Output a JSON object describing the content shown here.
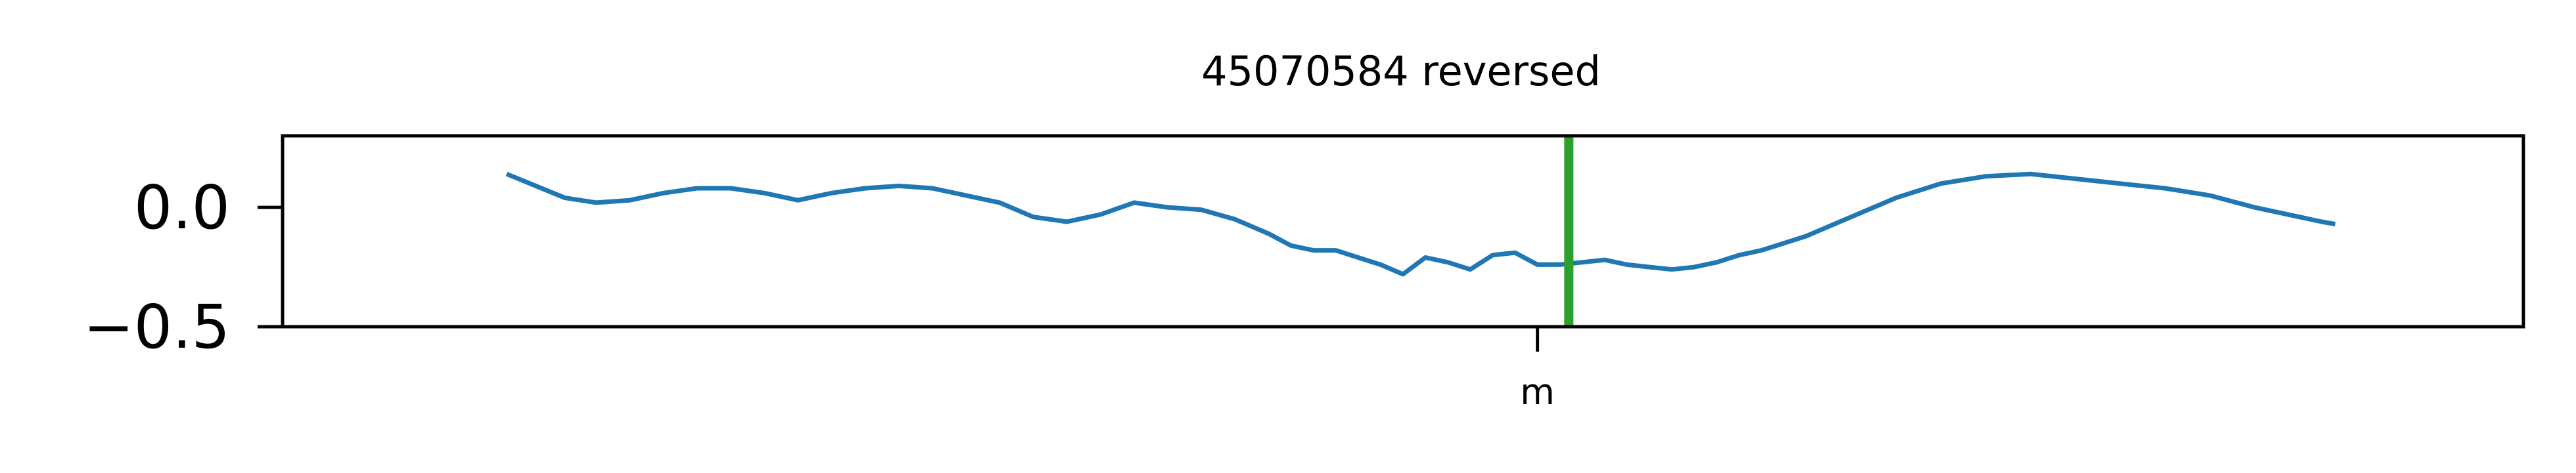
{
  "chart_data": {
    "type": "line",
    "title": "45070584 reversed",
    "xlabel": "",
    "ylabel": "",
    "ylim": [
      -0.5,
      0.3
    ],
    "yticks": [
      {
        "value": 0.0,
        "label": "0.0"
      },
      {
        "value": -0.5,
        "label": "−0.5"
      }
    ],
    "xlim": [
      0,
      1
    ],
    "xticks": [
      {
        "value": 0.56,
        "label": "m"
      }
    ],
    "grid": false,
    "series": [
      {
        "color": "#1f77b4",
        "x": [
          0.1,
          0.113,
          0.126,
          0.14,
          0.155,
          0.17,
          0.185,
          0.2,
          0.215,
          0.23,
          0.245,
          0.26,
          0.275,
          0.29,
          0.305,
          0.32,
          0.335,
          0.35,
          0.365,
          0.38,
          0.395,
          0.41,
          0.425,
          0.44,
          0.45,
          0.46,
          0.47,
          0.48,
          0.49,
          0.5,
          0.51,
          0.52,
          0.53,
          0.54,
          0.55,
          0.56,
          0.57,
          0.58,
          0.59,
          0.6,
          0.61,
          0.62,
          0.63,
          0.64,
          0.65,
          0.66,
          0.67,
          0.68,
          0.69,
          0.7,
          0.71,
          0.72,
          0.73,
          0.74,
          0.76,
          0.78,
          0.8,
          0.82,
          0.84,
          0.86,
          0.88,
          0.9,
          0.91,
          0.916
        ],
        "values": [
          0.14,
          0.09,
          0.04,
          0.02,
          0.03,
          0.06,
          0.08,
          0.08,
          0.06,
          0.03,
          0.06,
          0.08,
          0.09,
          0.08,
          0.05,
          0.02,
          -0.04,
          -0.06,
          -0.03,
          0.02,
          0.0,
          -0.01,
          -0.05,
          -0.11,
          -0.16,
          -0.18,
          -0.18,
          -0.21,
          -0.24,
          -0.28,
          -0.21,
          -0.23,
          -0.26,
          -0.2,
          -0.19,
          -0.24,
          -0.24,
          -0.23,
          -0.22,
          -0.24,
          -0.25,
          -0.26,
          -0.25,
          -0.23,
          -0.2,
          -0.18,
          -0.15,
          -0.12,
          -0.08,
          -0.04,
          0.0,
          0.04,
          0.07,
          0.1,
          0.13,
          0.14,
          0.12,
          0.1,
          0.08,
          0.05,
          0.0,
          -0.04,
          -0.06,
          -0.07
        ]
      }
    ],
    "vlines": [
      {
        "x": 0.574,
        "color": "#2ca02c"
      }
    ]
  }
}
